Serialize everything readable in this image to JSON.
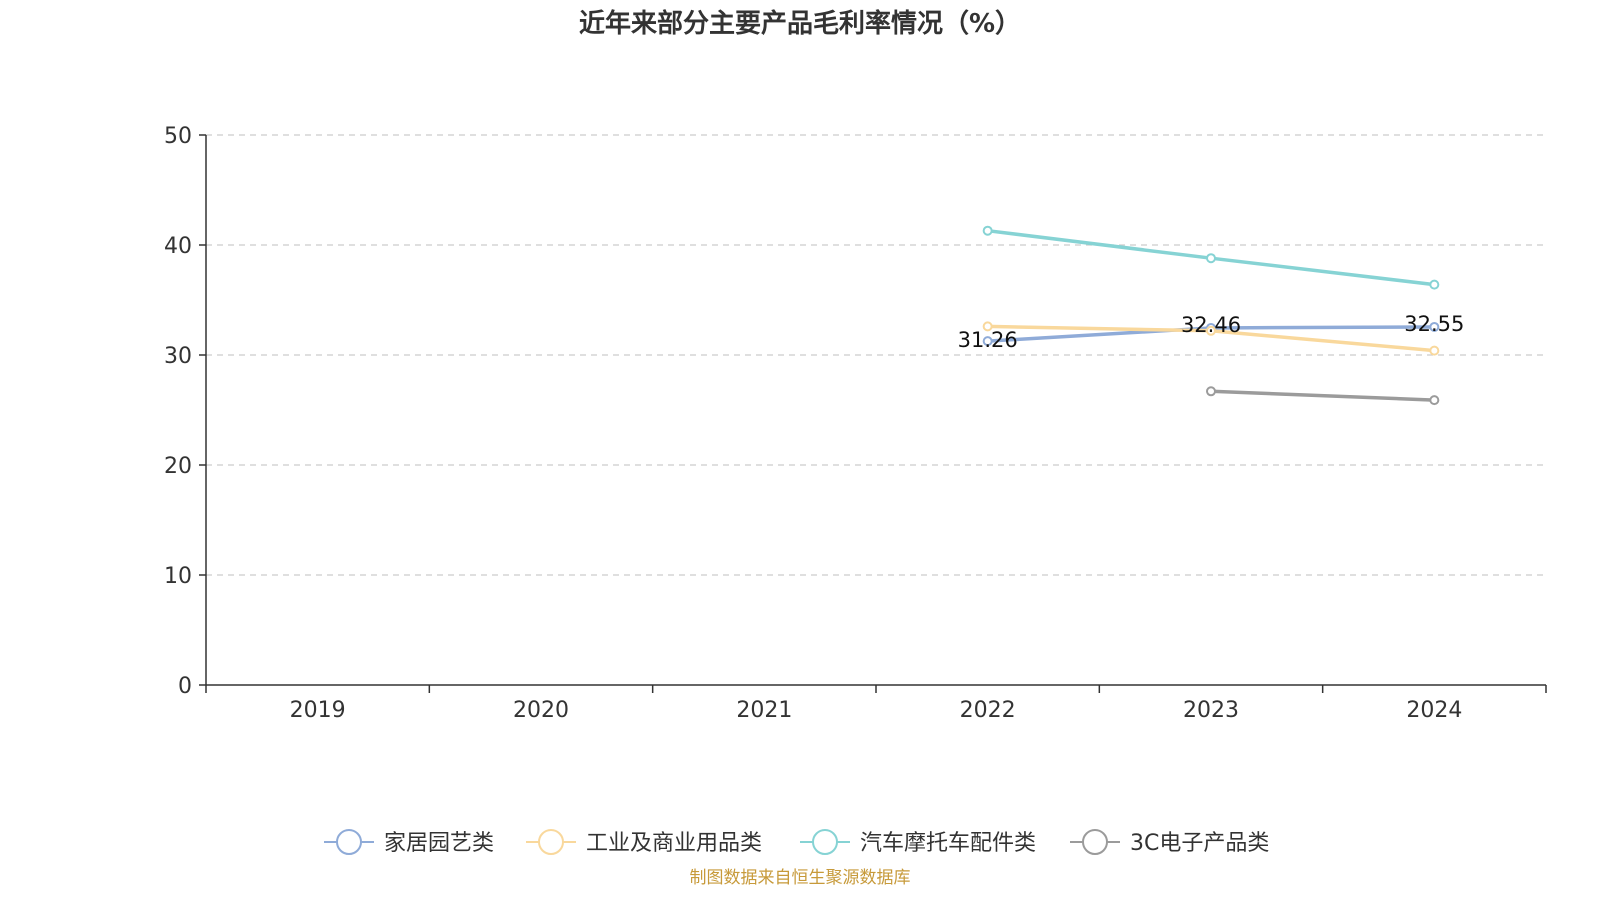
{
  "chart_data": {
    "type": "line",
    "title": "近年来部分主要产品毛利率情况（%）",
    "xlabel": "",
    "ylabel": "",
    "x": [
      "2019",
      "2020",
      "2021",
      "2022",
      "2023",
      "2024"
    ],
    "ylim": [
      0,
      50
    ],
    "yticks": [
      "0",
      "10",
      "20",
      "30",
      "40",
      "50"
    ],
    "grid": true,
    "legend_position": "bottom",
    "series": [
      {
        "name": "家居园艺类",
        "color": "#8fabd8",
        "values": [
          null,
          null,
          null,
          31.26,
          32.46,
          32.55
        ],
        "labels": [
          null,
          null,
          null,
          "31.26",
          "32.46",
          "32.55"
        ]
      },
      {
        "name": "工业及商业用品类",
        "color": "#f9d89c",
        "values": [
          null,
          null,
          null,
          32.6,
          32.2,
          30.4
        ],
        "labels": [
          null,
          null,
          null,
          null,
          null,
          null
        ]
      },
      {
        "name": "汽车摩托车配件类",
        "color": "#86d3d4",
        "values": [
          null,
          null,
          null,
          41.3,
          38.8,
          36.4
        ],
        "labels": [
          null,
          null,
          null,
          null,
          null,
          null
        ]
      },
      {
        "name": "3C电子产品类",
        "color": "#9b9b9b",
        "values": [
          null,
          null,
          null,
          null,
          26.7,
          25.9
        ],
        "labels": [
          null,
          null,
          null,
          null,
          null,
          null
        ]
      }
    ]
  },
  "source_note": "制图数据来自恒生聚源数据库"
}
